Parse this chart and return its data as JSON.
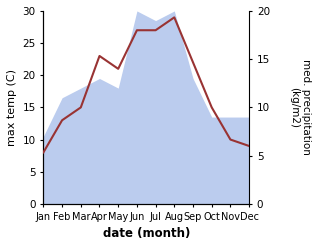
{
  "months": [
    "Jan",
    "Feb",
    "Mar",
    "Apr",
    "May",
    "Jun",
    "Jul",
    "Aug",
    "Sep",
    "Oct",
    "Nov",
    "Dec"
  ],
  "temperature": [
    8,
    13,
    15,
    23,
    21,
    27,
    27,
    29,
    22,
    15,
    10,
    9
  ],
  "precipitation": [
    7,
    11,
    12,
    13,
    12,
    20,
    19,
    20,
    13,
    9,
    9,
    9
  ],
  "temp_color": "#993333",
  "precip_color": "#bbccee",
  "temp_ylim": [
    0,
    30
  ],
  "precip_ylim": [
    0,
    20
  ],
  "temp_yticks": [
    0,
    5,
    10,
    15,
    20,
    25,
    30
  ],
  "precip_yticks": [
    0,
    5,
    10,
    15,
    20
  ],
  "xlabel": "date (month)",
  "ylabel_left": "max temp (C)",
  "ylabel_right": "med. precipitation\n(kg/m2)",
  "bg_color": "#ffffff",
  "figsize": [
    3.18,
    2.47
  ],
  "dpi": 100
}
